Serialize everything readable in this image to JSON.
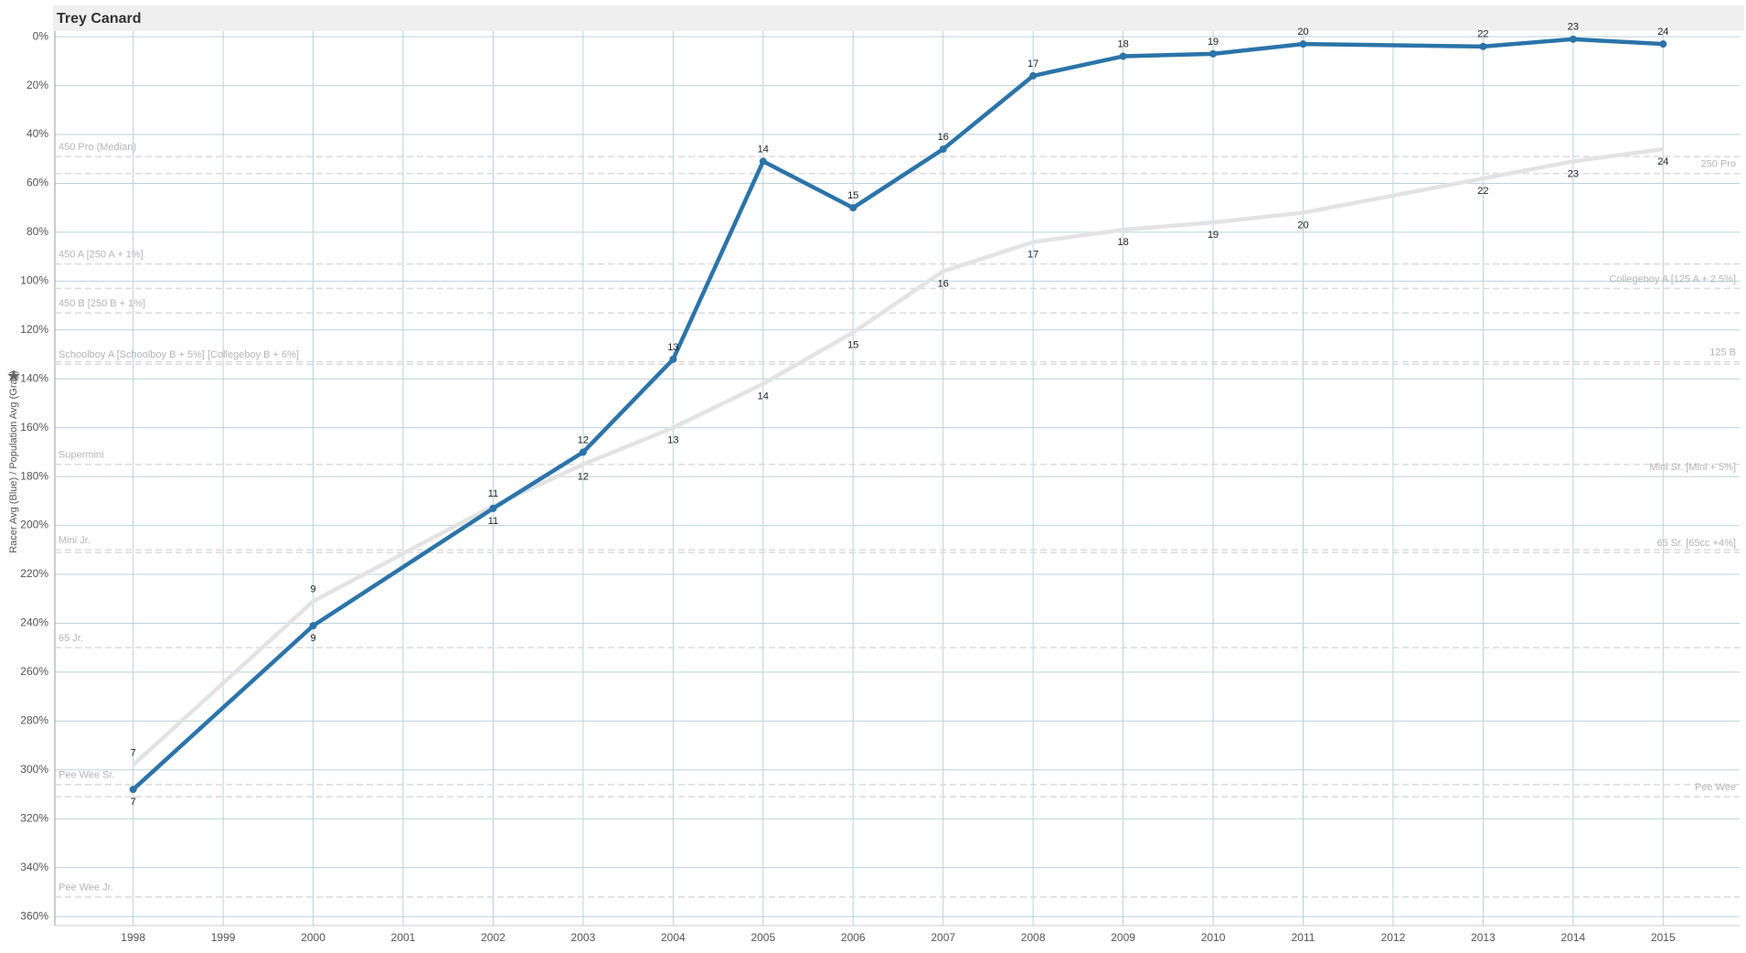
{
  "chart_data": {
    "type": "line",
    "title": "Trey Canard",
    "y_title": "Racer Avg (Blue) / Population Avg (Gray)",
    "x": [
      1998,
      2000,
      2002,
      2003,
      2004,
      2005,
      2006,
      2007,
      2008,
      2009,
      2010,
      2011,
      2013,
      2014,
      2015
    ],
    "series": [
      {
        "color": "#e3e3e3",
        "markers": false,
        "values": [
          298,
          231,
          192,
          175,
          160,
          142,
          121,
          96,
          84,
          79,
          76,
          72,
          58,
          51,
          46
        ],
        "point_labels": [
          "7",
          "9",
          "11",
          "12",
          "13",
          "14",
          "15",
          "16",
          "17",
          "18",
          "19",
          "20",
          "22",
          "23",
          "24"
        ]
      },
      {
        "color": "#2b74a9",
        "markers": true,
        "values": [
          308,
          241,
          193,
          170,
          132,
          51,
          70,
          46,
          16,
          8,
          7,
          3,
          4,
          1,
          3
        ],
        "point_labels": [
          "7",
          "9",
          "11",
          "12",
          "13",
          "14",
          "15",
          "16",
          "17",
          "18",
          "19",
          "20",
          "22",
          "23",
          "24"
        ]
      }
    ],
    "xlim": [
      1997.13,
      2015.85
    ],
    "xticks": [
      1998,
      1999,
      2000,
      2001,
      2002,
      2003,
      2004,
      2005,
      2006,
      2007,
      2008,
      2009,
      2010,
      2011,
      2012,
      2013,
      2014,
      2015
    ],
    "ylim": [
      -2.3,
      363.7
    ],
    "y_inverted": true,
    "yticks": [
      {
        "value": 0,
        "label": "0%"
      },
      {
        "value": 20,
        "label": "20%"
      },
      {
        "value": 40,
        "label": "40%"
      },
      {
        "value": 60,
        "label": "60%"
      },
      {
        "value": 80,
        "label": "80%"
      },
      {
        "value": 100,
        "label": "100%"
      },
      {
        "value": 120,
        "label": "120%"
      },
      {
        "value": 140,
        "label": "140%"
      },
      {
        "value": 160,
        "label": "160%"
      },
      {
        "value": 180,
        "label": "180%"
      },
      {
        "value": 200,
        "label": "200%"
      },
      {
        "value": 220,
        "label": "220%"
      },
      {
        "value": 240,
        "label": "240%"
      },
      {
        "value": 260,
        "label": "260%"
      },
      {
        "value": 280,
        "label": "280%"
      },
      {
        "value": 300,
        "label": "300%"
      },
      {
        "value": 320,
        "label": "320%"
      },
      {
        "value": 340,
        "label": "340%"
      },
      {
        "value": 360,
        "label": "360%"
      }
    ],
    "grid": true,
    "reference_lines": [
      {
        "value": 49,
        "label": "450 Pro (Median)",
        "side": "left"
      },
      {
        "value": 93,
        "label": "450 A [250 A + 1%]",
        "side": "left"
      },
      {
        "value": 113,
        "label": "450 B [250 B + 1%]",
        "side": "left"
      },
      {
        "value": 134,
        "label": "Schoolboy A [Schoolboy B + 5%] [Collegeboy B + 6%]",
        "side": "left"
      },
      {
        "value": 175,
        "label": "Supermini",
        "side": "left"
      },
      {
        "value": 210,
        "label": "Mini Jr.",
        "side": "left"
      },
      {
        "value": 250,
        "label": "65 Jr.",
        "side": "left"
      },
      {
        "value": 306,
        "label": "Pee Wee Sr.",
        "side": "left"
      },
      {
        "value": 352,
        "label": "Pee Wee Jr.",
        "side": "left"
      },
      {
        "value": 56,
        "label": "250 Pro",
        "side": "right"
      },
      {
        "value": 103,
        "label": "Collegeboy A [125 A + 2.5%]",
        "side": "right"
      },
      {
        "value": 133,
        "label": "125 B",
        "side": "right"
      },
      {
        "value": 180,
        "label": "Mini Sr. [Mini + 5%]",
        "side": "right"
      },
      {
        "value": 211,
        "label": "65 Sr. [65cc +4%]",
        "side": "right"
      },
      {
        "value": 311,
        "label": "Pee Wee",
        "side": "right"
      }
    ]
  }
}
